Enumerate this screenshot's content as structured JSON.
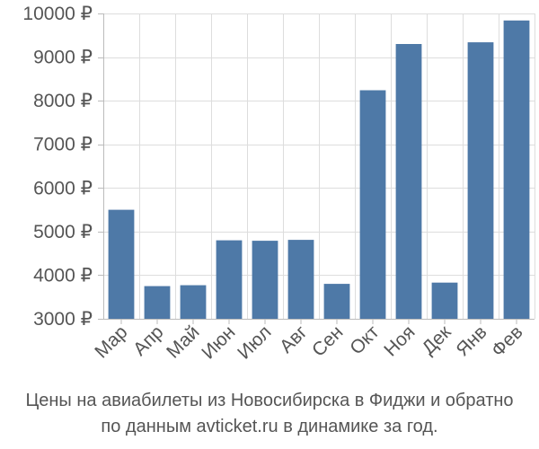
{
  "caption": {
    "line1": "Цены на авиабилеты из Новосибирска в Фиджи и обратно",
    "line2": "по данным avticket.ru в динамике за год."
  },
  "chart_data": {
    "type": "bar",
    "categories": [
      "Мар",
      "Апр",
      "Май",
      "Июн",
      "Июл",
      "Авг",
      "Сен",
      "Окт",
      "Ноя",
      "Дек",
      "Янв",
      "Фев"
    ],
    "values": [
      5500,
      3750,
      3770,
      4800,
      4790,
      4810,
      3800,
      8240,
      9300,
      3830,
      9340,
      9840
    ],
    "ylim": [
      3000,
      10000
    ],
    "yticks": [
      3000,
      4000,
      5000,
      6000,
      7000,
      8000,
      9000,
      10000
    ],
    "ytick_labels": [
      "3000 ₽",
      "4000 ₽",
      "5000 ₽",
      "6000 ₽",
      "7000 ₽",
      "8000 ₽",
      "9000 ₽",
      "10000 ₽"
    ],
    "bar_color": "#4e79a7",
    "grid": true,
    "title": "",
    "xlabel": "",
    "ylabel": ""
  }
}
